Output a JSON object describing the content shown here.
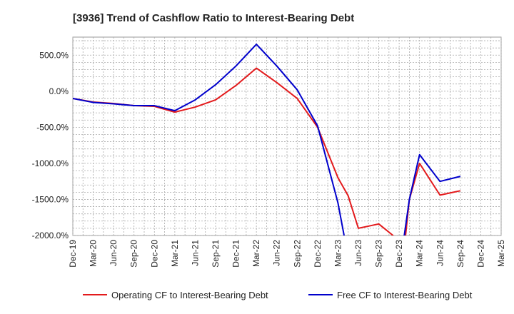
{
  "chart_data": {
    "type": "line",
    "title": "[3936]  Trend of Cashflow Ratio to Interest-Bearing Debt",
    "xlabel": "",
    "ylabel": "",
    "categories": [
      "Dec-19",
      "Mar-20",
      "Jun-20",
      "Sep-20",
      "Dec-20",
      "Mar-21",
      "Jun-21",
      "Sep-21",
      "Dec-21",
      "Mar-22",
      "Jun-22",
      "Sep-22",
      "Dec-22",
      "Mar-23",
      "Jun-23",
      "Sep-23",
      "Dec-23",
      "Mar-24",
      "Jun-24",
      "Sep-24",
      "Dec-24",
      "Mar-25"
    ],
    "x_index": [
      0,
      0.5,
      1,
      1.5,
      2,
      2.5,
      3,
      3.5,
      4,
      4.5,
      5,
      5.5,
      6,
      6.5,
      7,
      7.5,
      8,
      8.5,
      9,
      9.5,
      10,
      10.5,
      11,
      11.5,
      12,
      12.5,
      13,
      13.5,
      14,
      14.5,
      15,
      15.5,
      16,
      16.5,
      17,
      17.5,
      18,
      18.5,
      19
    ],
    "ylim": [
      -2000,
      750
    ],
    "yticks": [
      500,
      0,
      -500,
      -1000,
      -1500,
      -2000
    ],
    "ytick_labels": [
      "500.0%",
      "0.0%",
      "-500.0%",
      "-1000.0%",
      "-1500.0%",
      "-2000.0%"
    ],
    "grid": true,
    "legend_position": "bottom",
    "series": [
      {
        "name": "Operating CF to Interest-Bearing Debt",
        "color": "#e31a1c",
        "points": [
          [
            0,
            -100
          ],
          [
            1,
            -150
          ],
          [
            2,
            -170
          ],
          [
            3,
            -200
          ],
          [
            4,
            -210
          ],
          [
            5,
            -290
          ],
          [
            6,
            -220
          ],
          [
            7,
            -120
          ],
          [
            8,
            80
          ],
          [
            9,
            320
          ],
          [
            10,
            120
          ],
          [
            11,
            -100
          ],
          [
            12,
            -500
          ],
          [
            13,
            -1200
          ],
          [
            13.5,
            -1450
          ],
          [
            14,
            -1900
          ],
          [
            15,
            -1840
          ],
          [
            15.7,
            -2000
          ],
          [
            16,
            -2100
          ],
          [
            16.2,
            -2300
          ],
          [
            16.5,
            -1500
          ],
          [
            17,
            -1000
          ],
          [
            18,
            -1440
          ],
          [
            19,
            -1380
          ]
        ]
      },
      {
        "name": "Free CF to Interest-Bearing Debt",
        "color": "#0000cc",
        "points": [
          [
            0,
            -100
          ],
          [
            1,
            -155
          ],
          [
            2,
            -175
          ],
          [
            3,
            -200
          ],
          [
            4,
            -200
          ],
          [
            5,
            -270
          ],
          [
            6,
            -120
          ],
          [
            7,
            90
          ],
          [
            8,
            350
          ],
          [
            9,
            650
          ],
          [
            10,
            350
          ],
          [
            11,
            20
          ],
          [
            12,
            -480
          ],
          [
            13,
            -1550
          ],
          [
            13.3,
            -2000
          ],
          [
            13.5,
            -2300
          ],
          [
            16.1,
            -2300
          ],
          [
            16.5,
            -1500
          ],
          [
            17,
            -880
          ],
          [
            18,
            -1250
          ],
          [
            19,
            -1180
          ]
        ]
      }
    ],
    "x_tick_positions": [
      0,
      1,
      2,
      3,
      4,
      5,
      6,
      7,
      8,
      9,
      10,
      11,
      12,
      13,
      14,
      15,
      16,
      17,
      18,
      19,
      20,
      21
    ]
  }
}
